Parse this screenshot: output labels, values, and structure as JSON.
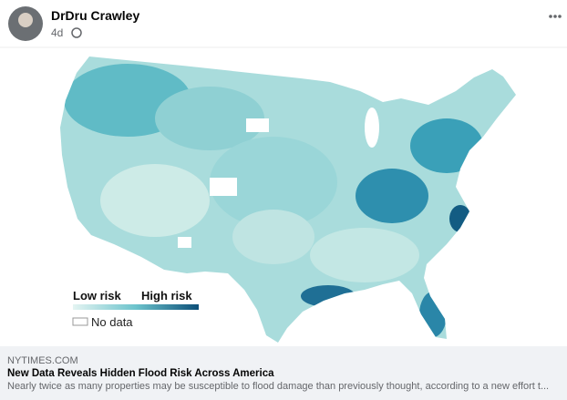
{
  "post": {
    "author": "DrDru Crawley",
    "time": "4d"
  },
  "map": {
    "legend": {
      "low": "Low risk",
      "high": "High risk",
      "no_data": "No data"
    }
  },
  "link": {
    "domain": "NYTIMES.COM",
    "title": "New Data Reveals Hidden Flood Risk Across America",
    "description": "Nearly twice as many properties may be susceptible to flood damage than previously thought, according to a new effort t..."
  }
}
